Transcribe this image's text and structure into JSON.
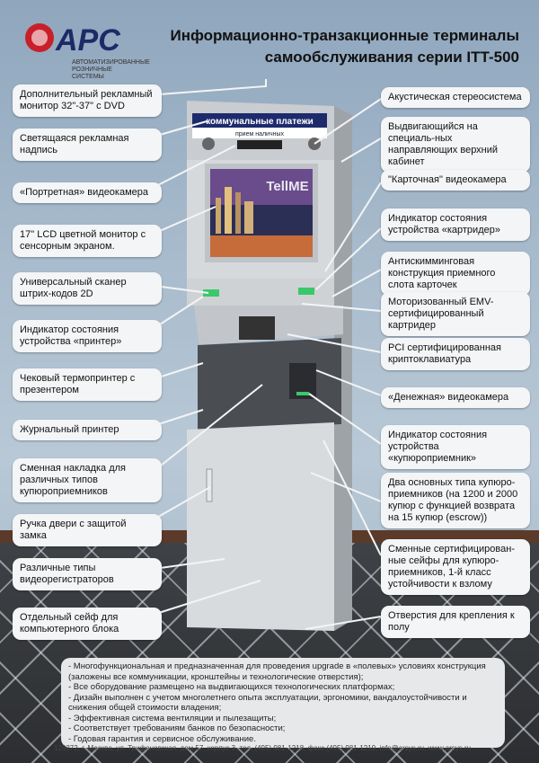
{
  "header": {
    "title_line1": "Информационно-транзакционные терминалы",
    "title_line2": "самообслуживания серии ITT-500",
    "logo_text": "АРС",
    "logo_sub": "АВТОМАТИЗИРОВАННЫЕ РОЗНИЧНЫЕ СИСТЕМЫ"
  },
  "kiosk": {
    "sign": "коммунальные платежи",
    "sign_sub": "прием наличных",
    "screen_brand": "TellME"
  },
  "left_labels": [
    "Дополнительный рекламный монитор 32\"-37\" с DVD",
    "Светящаяся рекламная надпись",
    "«Портретная» видеокамера",
    "17\" LCD цветной монитор с сенсорным экраном.",
    "Универсальный сканер штрих-кодов 2D",
    "Индикатор состояния устройства «принтер»",
    "Чековый термопринтер с презентером",
    "Журнальный принтер",
    "Сменная накладка для различных типов купюроприемников",
    "Ручка двери с защитой замка",
    "Различные типы видеорегистраторов",
    "Отдельный сейф для компьютерного блока"
  ],
  "right_labels": [
    "Акустическая стереосистема",
    "Выдвигающийся на специаль-ных направляющих верхний кабинет",
    "\"Карточная\" видеокамера",
    "Индикатор состояния устройства «картридер»",
    "Антискимминговая конструкция приемного слота карточек",
    "Моторизованный EMV-сертифицированный картридер",
    "PCI сертифицированная криптоклавиатура",
    "«Денежная» видеокамера",
    "Индикатор состояния устройства «купюроприемник»",
    "Два основных типа купюро-приемников (на 1200 и 2000 купюр с функцией возврата на 15 купюр (escrow))",
    "Сменные сертифицирован-ные сейфы для купюро-приемников, 1-й класс устойчивости к взлому",
    "Отверстия для крепления к полу"
  ],
  "features": [
    "- Многофункциональная и предназначенная для проведения upgrade в «полевых» условиях конструкция (заложены все коммуникации, кронштейны и технологические отверстия);",
    "- Все оборудование размещено на выдвигающихся технологических платформах;",
    "- Дизайн выполнен с учетом многолетнего опыта эксплуатации, эргономики, вандалоустойчивости и снижения общей стоимости владения;",
    "- Эффективная система вентиляции и пылезащиты;",
    "- Соответствует требованиям банков по безопасности;",
    "- Годовая гарантия и сервисное обслуживание."
  ],
  "contacts": "129272, г. Москва, ул. Трифоновская, дом 57, корпус 3, тел. (495) 981-1218, факс (495) 981-1219, info@arsys.ru, www.arsys.ru"
}
